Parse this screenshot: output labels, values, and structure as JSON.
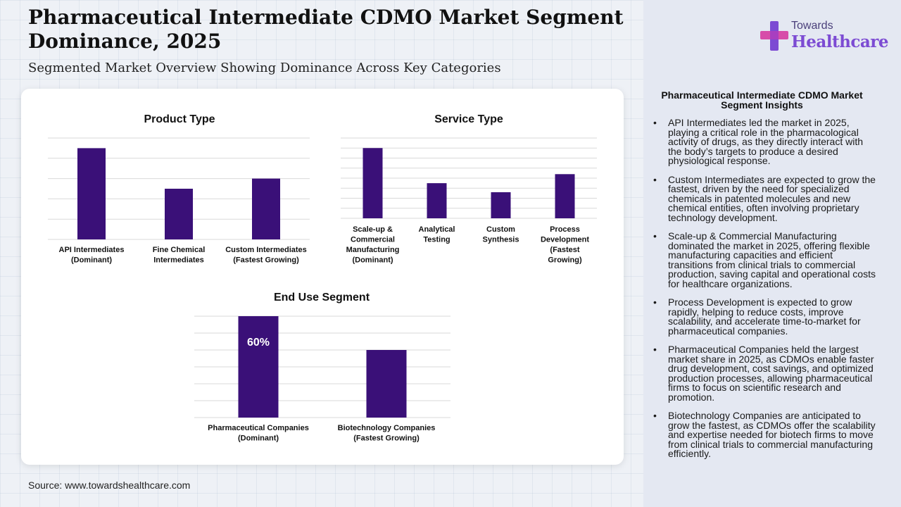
{
  "title": "Pharmaceutical Intermediate CDMO Market Segment Dominance, 2025",
  "subtitle": "Segmented Market Overview Showing Dominance Across Key Categories",
  "source": "Source: www.towardshealthcare.com",
  "logo": {
    "small": "Towards",
    "big": "Healthcare"
  },
  "colors": {
    "bar": "#3a1078",
    "grid": "#d9d9d9",
    "logo_purple": "#7c4bd3",
    "logo_pink": "#d63ea3"
  },
  "chart_data": [
    {
      "type": "bar",
      "title": "Product Type",
      "categories": [
        "API Intermediates\n(Dominant)",
        "Fine Chemical\nIntermediates",
        "Custom Intermediates\n(Fastest Growing)"
      ],
      "values": [
        45,
        25,
        30
      ],
      "ylim": [
        0,
        50
      ],
      "grid": true
    },
    {
      "type": "bar",
      "title": "Service Type",
      "categories": [
        "Scale-up &\nCommercial\nManufacturing\n(Dominant)",
        "Analytical\nTesting",
        "Custom\nSynthesis",
        "Process\nDevelopment\n(Fastest\nGrowing)"
      ],
      "values": [
        35,
        17.5,
        13,
        22
      ],
      "ylim": [
        0,
        40
      ],
      "grid": true
    },
    {
      "type": "bar",
      "title": "End Use Segment",
      "categories": [
        "Pharmaceutical Companies\n(Dominant)",
        "Biotechnology Companies\n(Fastest Growing)"
      ],
      "values": [
        60,
        40
      ],
      "data_labels": [
        "60%",
        ""
      ],
      "ylim": [
        0,
        60
      ],
      "grid": true
    }
  ],
  "insights": {
    "title": "Pharmaceutical Intermediate CDMO Market Segment Insights",
    "bullet": "•",
    "items": [
      "API Intermediates led the market in 2025, playing a critical role in the pharmacological activity of drugs, as they directly interact with the body’s targets to produce a desired physiological response.",
      "Custom Intermediates are expected to grow the fastest, driven by the need for specialized chemicals in patented molecules and new chemical entities, often involving proprietary technology development.",
      "Scale-up & Commercial Manufacturing dominated the market in 2025, offering flexible manufacturing capacities and efficient transitions from clinical trials to commercial production, saving capital and operational costs for healthcare organizations.",
      "Process Development is expected to grow rapidly, helping to reduce costs, improve scalability, and accelerate time-to-market for pharmaceutical companies.",
      "Pharmaceutical Companies held the largest market share in 2025, as CDMOs enable faster drug development, cost savings, and optimized production processes, allowing pharmaceutical firms to focus on scientific research and promotion.",
      "Biotechnology Companies are anticipated to grow the fastest, as CDMOs offer the scalability and expertise needed for biotech firms to move from clinical trials to commercial manufacturing efficiently."
    ]
  }
}
